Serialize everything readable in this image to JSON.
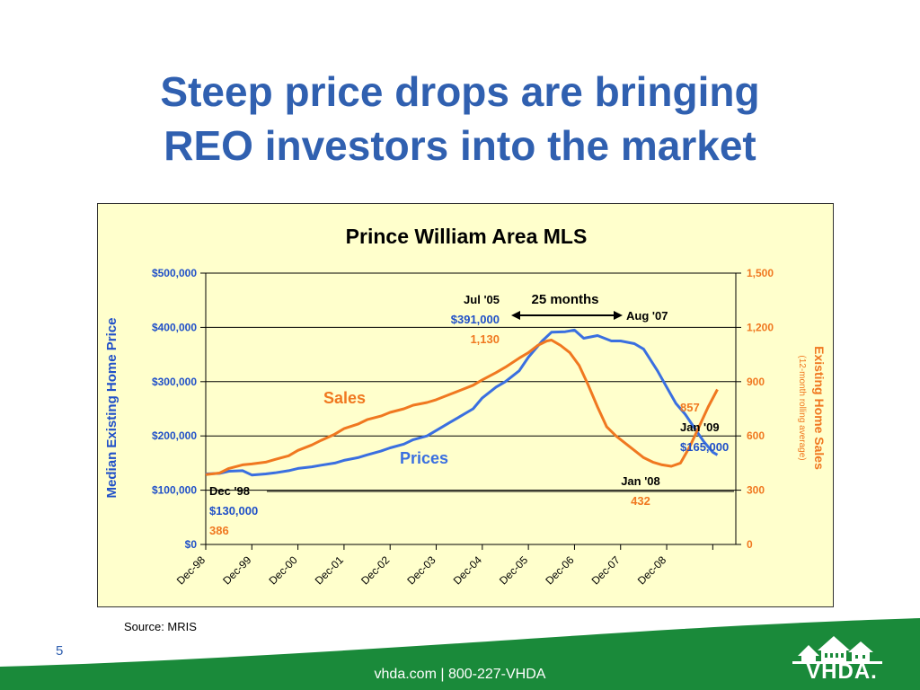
{
  "slide": {
    "title_line1": "Steep price drops are bringing",
    "title_line2": "REO investors into the market",
    "source": "Source:  MRIS",
    "page_number": "5",
    "footer": "vhda.com | 800-227-VHDA",
    "logo_text": "VHDA."
  },
  "colors": {
    "title": "#3060b0",
    "prices": "#3a6fe0",
    "sales": "#f07820",
    "left_axis": "#2050c8",
    "right_axis": "#f07820",
    "chart_bg": "#ffffcc",
    "footer_green": "#1a8a3a"
  },
  "chart_data": {
    "type": "line",
    "title": "Prince William Area MLS",
    "y_left_label": "Median Existing Home Price",
    "y_right_label": "Existing Home Sales",
    "y_right_sublabel": "(12-month rolling average)",
    "y_left_range": [
      0,
      500000
    ],
    "y_right_range": [
      0,
      1500
    ],
    "y_left_ticks": [
      "$0",
      "$100,000",
      "$200,000",
      "$300,000",
      "$400,000",
      "$500,000"
    ],
    "y_right_ticks": [
      "0",
      "300",
      "600",
      "900",
      "1,200",
      "1,500"
    ],
    "x_ticks": [
      "Dec-98",
      "Dec-99",
      "Dec-00",
      "Dec-01",
      "Dec-02",
      "Dec-03",
      "Dec-04",
      "Dec-05",
      "Dec-06",
      "Dec-07",
      "Dec-08"
    ],
    "x_range": [
      0,
      11.5
    ],
    "series": [
      {
        "name": "Prices",
        "axis": "left",
        "points": [
          [
            0,
            130000
          ],
          [
            0.3,
            131000
          ],
          [
            0.5,
            135000
          ],
          [
            0.8,
            136000
          ],
          [
            1.0,
            128000
          ],
          [
            1.3,
            130000
          ],
          [
            1.5,
            132000
          ],
          [
            1.8,
            136000
          ],
          [
            2.0,
            140000
          ],
          [
            2.3,
            143000
          ],
          [
            2.5,
            146000
          ],
          [
            2.8,
            150000
          ],
          [
            3.0,
            155000
          ],
          [
            3.3,
            160000
          ],
          [
            3.5,
            165000
          ],
          [
            3.8,
            172000
          ],
          [
            4.0,
            178000
          ],
          [
            4.3,
            185000
          ],
          [
            4.5,
            193000
          ],
          [
            4.8,
            200000
          ],
          [
            5.0,
            210000
          ],
          [
            5.3,
            225000
          ],
          [
            5.5,
            235000
          ],
          [
            5.8,
            250000
          ],
          [
            6.0,
            270000
          ],
          [
            6.3,
            290000
          ],
          [
            6.5,
            300000
          ],
          [
            6.8,
            320000
          ],
          [
            7.0,
            345000
          ],
          [
            7.3,
            375000
          ],
          [
            7.5,
            391000
          ],
          [
            7.8,
            392000
          ],
          [
            8.0,
            395000
          ],
          [
            8.2,
            380000
          ],
          [
            8.5,
            385000
          ],
          [
            8.8,
            375000
          ],
          [
            9.0,
            375000
          ],
          [
            9.3,
            370000
          ],
          [
            9.5,
            360000
          ],
          [
            9.8,
            320000
          ],
          [
            10.0,
            290000
          ],
          [
            10.2,
            260000
          ],
          [
            10.4,
            240000
          ],
          [
            10.6,
            215000
          ],
          [
            10.8,
            190000
          ],
          [
            11.0,
            170000
          ],
          [
            11.1,
            165000
          ]
        ]
      },
      {
        "name": "Sales",
        "axis": "right",
        "points": [
          [
            0,
            386
          ],
          [
            0.3,
            395
          ],
          [
            0.5,
            420
          ],
          [
            0.8,
            440
          ],
          [
            1.0,
            445
          ],
          [
            1.3,
            455
          ],
          [
            1.5,
            470
          ],
          [
            1.8,
            490
          ],
          [
            2.0,
            520
          ],
          [
            2.3,
            550
          ],
          [
            2.5,
            575
          ],
          [
            2.8,
            610
          ],
          [
            3.0,
            640
          ],
          [
            3.3,
            665
          ],
          [
            3.5,
            690
          ],
          [
            3.8,
            710
          ],
          [
            4.0,
            730
          ],
          [
            4.3,
            750
          ],
          [
            4.5,
            770
          ],
          [
            4.8,
            785
          ],
          [
            5.0,
            800
          ],
          [
            5.3,
            830
          ],
          [
            5.5,
            850
          ],
          [
            5.8,
            880
          ],
          [
            6.0,
            910
          ],
          [
            6.3,
            950
          ],
          [
            6.5,
            980
          ],
          [
            6.8,
            1030
          ],
          [
            7.0,
            1060
          ],
          [
            7.2,
            1100
          ],
          [
            7.4,
            1125
          ],
          [
            7.5,
            1130
          ],
          [
            7.7,
            1100
          ],
          [
            7.9,
            1060
          ],
          [
            8.1,
            990
          ],
          [
            8.3,
            880
          ],
          [
            8.5,
            760
          ],
          [
            8.7,
            650
          ],
          [
            8.9,
            600
          ],
          [
            9.1,
            560
          ],
          [
            9.3,
            520
          ],
          [
            9.5,
            480
          ],
          [
            9.7,
            455
          ],
          [
            9.9,
            440
          ],
          [
            10.1,
            432
          ],
          [
            10.3,
            450
          ],
          [
            10.5,
            540
          ],
          [
            10.7,
            650
          ],
          [
            10.9,
            760
          ],
          [
            11.1,
            857
          ]
        ]
      }
    ],
    "annotations": {
      "sales_label": "Sales",
      "prices_label": "Prices",
      "jul05_date": "Jul '05",
      "jul05_price": "$391,000",
      "jul05_sales": "1,130",
      "duration": "25 months",
      "aug07_date": "Aug '07",
      "dec98_date": "Dec '98",
      "dec98_price": "$130,000",
      "dec98_sales": "386",
      "jan08_date": "Jan '08",
      "jan08_sales": "432",
      "jan09_sales": "857",
      "jan09_date": "Jan '09",
      "jan09_price": "$165,000"
    }
  }
}
